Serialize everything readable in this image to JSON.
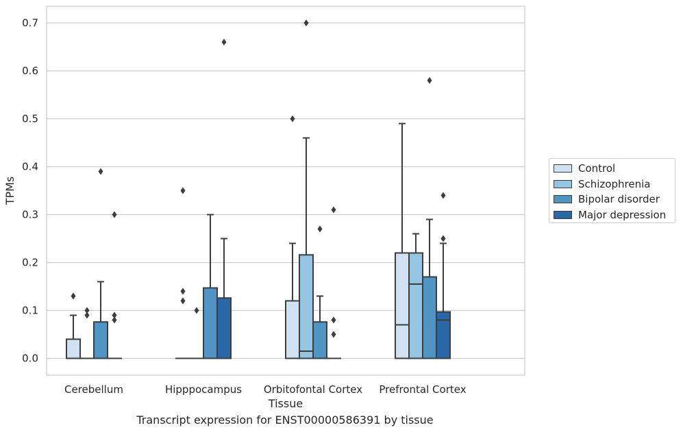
{
  "chart_data": {
    "type": "box",
    "xlabel": "Tissue",
    "ylabel": "TPMs",
    "caption": "Transcript expression for ENST00000586391 by tissue",
    "ylim": [
      -0.035,
      0.735
    ],
    "yticks": [
      "0.0",
      "0.1",
      "0.2",
      "0.3",
      "0.4",
      "0.5",
      "0.6",
      "0.7"
    ],
    "grid": "horizontal",
    "legend_position": "right",
    "categories": [
      "Cerebellum",
      "Hipppocampus",
      "Orbitofontal Cortex",
      "Prefrontal Cortex"
    ],
    "series": [
      {
        "name": "Control",
        "color": "#d0e1f2",
        "boxes": [
          {
            "min": 0.0,
            "q1": 0.0,
            "median": 0.0,
            "q3": 0.04,
            "max": 0.09,
            "outliers": [
              0.13
            ]
          },
          {
            "min": 0.0,
            "q1": 0.0,
            "median": 0.0,
            "q3": 0.0,
            "max": 0.0,
            "outliers": [
              0.12,
              0.14,
              0.35
            ]
          },
          {
            "min": 0.0,
            "q1": 0.0,
            "median": 0.0,
            "q3": 0.12,
            "max": 0.24,
            "outliers": [
              0.5
            ]
          },
          {
            "min": 0.0,
            "q1": 0.0,
            "median": 0.07,
            "q3": 0.22,
            "max": 0.49,
            "outliers": []
          }
        ]
      },
      {
        "name": "Schizophrenia",
        "color": "#94c4df",
        "boxes": [
          {
            "min": 0.0,
            "q1": 0.0,
            "median": 0.0,
            "q3": 0.0,
            "max": 0.0,
            "outliers": [
              0.09,
              0.1
            ]
          },
          {
            "min": 0.0,
            "q1": 0.0,
            "median": 0.0,
            "q3": 0.0,
            "max": 0.0,
            "outliers": [
              0.1
            ]
          },
          {
            "min": 0.0,
            "q1": 0.0,
            "median": 0.015,
            "q3": 0.216,
            "max": 0.46,
            "outliers": [
              0.7
            ]
          },
          {
            "min": 0.0,
            "q1": 0.0,
            "median": 0.155,
            "q3": 0.22,
            "max": 0.26,
            "outliers": []
          }
        ]
      },
      {
        "name": "Bipolar disorder",
        "color": "#5094c4",
        "boxes": [
          {
            "min": 0.0,
            "q1": 0.0,
            "median": 0.0,
            "q3": 0.076,
            "max": 0.16,
            "outliers": [
              0.39
            ]
          },
          {
            "min": 0.0,
            "q1": 0.0,
            "median": 0.0,
            "q3": 0.147,
            "max": 0.3,
            "outliers": []
          },
          {
            "min": 0.0,
            "q1": 0.0,
            "median": 0.0,
            "q3": 0.076,
            "max": 0.13,
            "outliers": [
              0.27
            ]
          },
          {
            "min": 0.0,
            "q1": 0.0,
            "median": 0.0,
            "q3": 0.17,
            "max": 0.29,
            "outliers": [
              0.58
            ]
          }
        ]
      },
      {
        "name": "Major depression",
        "color": "#2967a8",
        "boxes": [
          {
            "min": 0.0,
            "q1": 0.0,
            "median": 0.0,
            "q3": 0.0,
            "max": 0.0,
            "outliers": [
              0.08,
              0.09,
              0.3
            ]
          },
          {
            "min": 0.0,
            "q1": 0.0,
            "median": 0.0,
            "q3": 0.126,
            "max": 0.25,
            "outliers": [
              0.66
            ]
          },
          {
            "min": 0.0,
            "q1": 0.0,
            "median": 0.0,
            "q3": 0.0,
            "max": 0.0,
            "outliers": [
              0.05,
              0.08,
              0.31
            ]
          },
          {
            "min": 0.0,
            "q1": 0.0,
            "median": 0.08,
            "q3": 0.097,
            "max": 0.24,
            "outliers": [
              0.25,
              0.34
            ]
          }
        ]
      }
    ]
  }
}
